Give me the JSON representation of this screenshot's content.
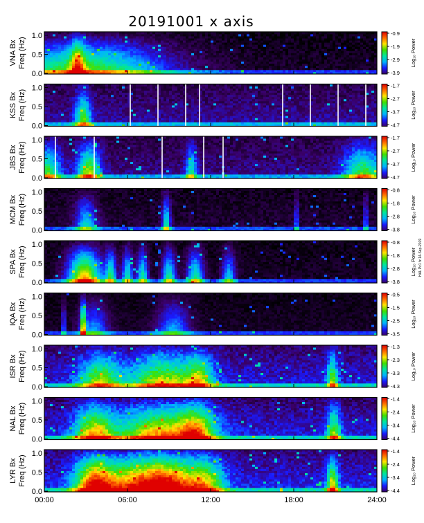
{
  "chart_data": {
    "type": "heatmap",
    "title": "20191001 x axis",
    "xlabel": "",
    "x_ticks": [
      "00:00",
      "06:00",
      "12:00",
      "18:00",
      "24:00"
    ],
    "x_range_hours": [
      0,
      24
    ],
    "y_ticks": [
      "0.0",
      "0.5",
      "1.0"
    ],
    "ylim_hz": [
      0,
      1
    ],
    "colorbar_label": "Log₁₀ Power",
    "colormap": [
      "#000000",
      "#3a0066",
      "#1a1aff",
      "#00b4ff",
      "#00e6a0",
      "#40e000",
      "#ffe600",
      "#ff6a00",
      "#e00000"
    ],
    "side_note": "HAL Pc1 fz 14-Sep-2019",
    "panels": [
      {
        "station": "VNA",
        "label1": "VNA Bx",
        "label2": "Freq (Hz)",
        "cb_ticks": [
          "-0.9",
          "-1.9",
          "-2.9",
          "-3.9"
        ],
        "gaps": [],
        "bg_level": 0.05,
        "noise": 0.08,
        "events": [
          [
            2.8,
            6,
            0.6
          ],
          [
            2.4,
            0.5,
            0.5
          ]
        ]
      },
      {
        "station": "KSS",
        "label1": "KSS Bx",
        "label2": "Freq (Hz)",
        "cb_ticks": [
          "-1.7",
          "-2.7",
          "-3.7",
          "-4.7"
        ],
        "gaps": [
          6.2,
          8.2,
          10.2,
          11.2,
          17.2,
          19.2,
          21.2,
          23.2
        ],
        "bg_level": 0.18,
        "noise": 0.1,
        "events": [
          [
            2.8,
            0.6,
            0.5
          ]
        ]
      },
      {
        "station": "JBS",
        "label1": "JBS Bx",
        "label2": "Freq (Hz)",
        "cb_ticks": [
          "-1.7",
          "-2.7",
          "-3.7",
          "-4.7"
        ],
        "gaps": [
          0.8,
          3.6,
          8.5,
          11.5,
          12.9
        ],
        "bg_level": 0.16,
        "noise": 0.1,
        "events": [
          [
            0.2,
            1.0,
            0.5
          ],
          [
            3.2,
            0.8,
            0.6
          ],
          [
            23.0,
            1.4,
            0.5
          ],
          [
            10.6,
            0.4,
            0.4
          ]
        ]
      },
      {
        "station": "MCM",
        "label1": "MCM Bx",
        "label2": "Freq (Hz)",
        "cb_ticks": [
          "-0.8",
          "-1.8",
          "-2.8",
          "-3.8"
        ],
        "gaps": [],
        "bg_level": 0.07,
        "noise": 0.08,
        "events": [
          [
            3.0,
            0.8,
            0.4
          ],
          [
            8.8,
            0.3,
            0.5
          ],
          [
            18.2,
            0.1,
            0.6
          ],
          [
            23.2,
            0.1,
            0.6
          ]
        ]
      },
      {
        "station": "SPA",
        "label1": "SPA Bx",
        "label2": "Freq (Hz)",
        "cb_ticks": [
          "-0.8",
          "-1.8",
          "-2.8",
          "-3.8"
        ],
        "gaps": [],
        "bg_level": 0.05,
        "noise": 0.07,
        "events": [
          [
            2.9,
            1.2,
            0.8
          ],
          [
            4.8,
            0.4,
            0.5
          ],
          [
            6.0,
            0.4,
            0.5
          ],
          [
            7.1,
            0.4,
            0.5
          ],
          [
            9.0,
            0.5,
            0.5
          ],
          [
            10.9,
            0.6,
            0.5
          ],
          [
            13.3,
            0.5,
            0.4
          ]
        ]
      },
      {
        "station": "IQA",
        "label1": "IQA Bx",
        "label2": "Freq (Hz)",
        "cb_ticks": [
          "-0.5",
          "-1.5",
          "-2.5",
          "-3.5"
        ],
        "gaps": [],
        "bg_level": 0.05,
        "noise": 0.06,
        "events": [
          [
            1.4,
            0.1,
            0.6
          ],
          [
            2.8,
            0.2,
            0.7
          ],
          [
            3.6,
            1.0,
            0.35
          ],
          [
            9.3,
            1.2,
            0.35
          ]
        ]
      },
      {
        "station": "ISR",
        "label1": "ISR Bx",
        "label2": "Freq (Hz)",
        "cb_ticks": [
          "-1.3",
          "-2.3",
          "-3.3",
          "-4.3"
        ],
        "gaps": [],
        "bg_level": 0.24,
        "noise": 0.12,
        "events": [
          [
            4.0,
            1.5,
            0.5
          ],
          [
            8.6,
            2.4,
            0.55
          ],
          [
            11.2,
            1.0,
            0.45
          ],
          [
            20.8,
            0.4,
            0.5
          ]
        ]
      },
      {
        "station": "NAL",
        "label1": "NAL Bx",
        "label2": "Freq (Hz)",
        "cb_ticks": [
          "-1.4",
          "-2.4",
          "-3.4",
          "-4.4"
        ],
        "gaps": [],
        "bg_level": 0.24,
        "noise": 0.12,
        "events": [
          [
            3.6,
            1.4,
            0.6
          ],
          [
            8.5,
            3.2,
            0.65
          ],
          [
            11.0,
            1.2,
            0.5
          ],
          [
            20.9,
            0.5,
            0.5
          ]
        ]
      },
      {
        "station": "LYR",
        "label1": "LYR Bx",
        "label2": "Freq (Hz)",
        "cb_ticks": [
          "-1.4",
          "-2.4",
          "-3.4",
          "-4.4"
        ],
        "gaps": [],
        "bg_level": 0.26,
        "noise": 0.12,
        "events": [
          [
            3.6,
            1.4,
            0.75
          ],
          [
            6.5,
            2.5,
            0.65
          ],
          [
            9.0,
            2.0,
            0.7
          ],
          [
            11.6,
            1.4,
            0.55
          ],
          [
            20.8,
            0.4,
            0.6
          ]
        ]
      }
    ]
  }
}
